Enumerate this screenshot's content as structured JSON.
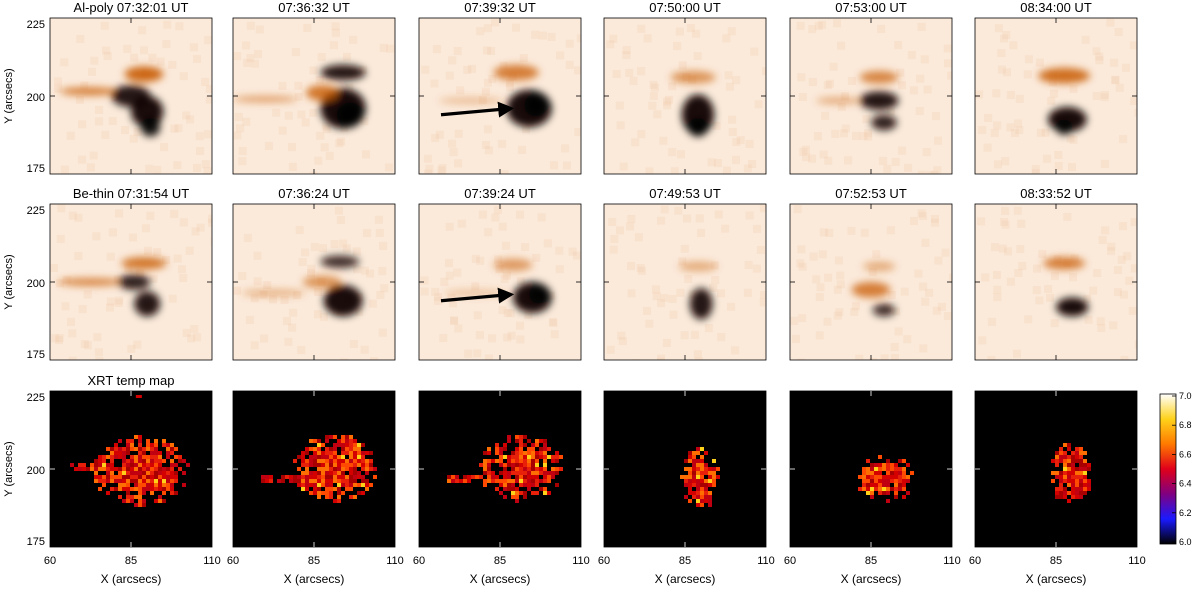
{
  "rows": [
    {
      "name": "al-poly",
      "titles": [
        "Al-poly 07:32:01 UT",
        "07:36:32 UT",
        "07:39:32 UT",
        "07:50:00 UT",
        "07:53:00 UT",
        "08:34:00 UT"
      ],
      "y_label": "Y (arcsecs)",
      "y_ticks": [
        "225",
        "200",
        "175"
      ]
    },
    {
      "name": "be-thin",
      "titles": [
        "Be-thin 07:31:54 UT",
        "07:36:24 UT",
        "07:39:24 UT",
        "07:49:53 UT",
        "07:52:53 UT",
        "08:33:52 UT"
      ],
      "y_label": "Y (arcsecs)",
      "y_ticks": [
        "225",
        "200",
        "175"
      ]
    },
    {
      "name": "xrt-temp-map",
      "titles": [
        "XRT temp map",
        "",
        "",
        "",
        "",
        ""
      ],
      "y_label": "Y (arcsecs)",
      "y_ticks": [
        "225",
        "200",
        "175"
      ]
    }
  ],
  "x_axis": {
    "label": "X (arcsecs)",
    "ticks": [
      "60",
      "85",
      "110"
    ],
    "range": [
      60,
      110
    ]
  },
  "y_axis": {
    "range": [
      175,
      225
    ]
  },
  "colorbar": {
    "ticks": [
      "7.0",
      "6.8",
      "6.6",
      "6.4",
      "6.2",
      "6.0"
    ],
    "range": [
      6.0,
      7.0
    ],
    "stops": [
      "#000000",
      "#1a1aff",
      "#800080",
      "#e0001a",
      "#ff7a00",
      "#ffd21a",
      "#ffffff"
    ]
  },
  "colors": {
    "intensity_dark": "#120500",
    "intensity_mid": "#c85a00",
    "intensity_light": "#fbeada",
    "map_background": "#000000",
    "arrow": "#000000"
  }
}
